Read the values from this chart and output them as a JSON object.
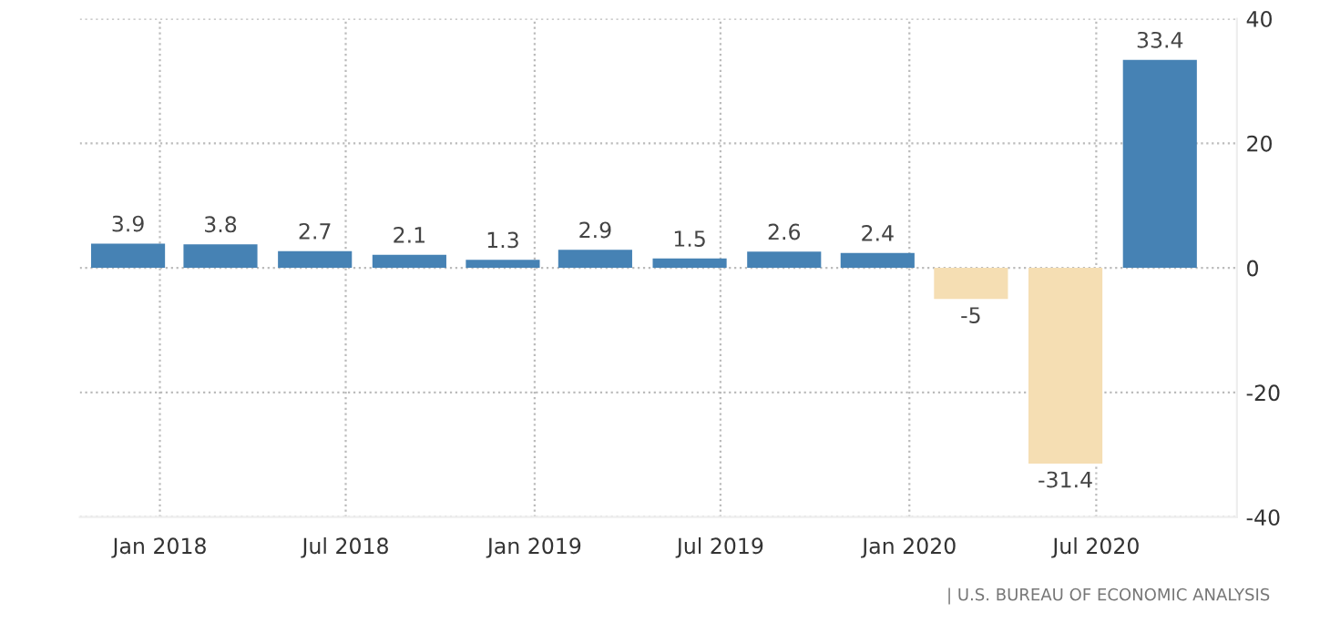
{
  "chart_data": {
    "type": "bar",
    "x": [
      "2017-12",
      "2018-03",
      "2018-06",
      "2018-09",
      "2018-12",
      "2019-03",
      "2019-06",
      "2019-09",
      "2019-12",
      "2020-03",
      "2020-06",
      "2020-09"
    ],
    "values": [
      3.9,
      3.8,
      2.7,
      2.1,
      1.3,
      2.9,
      1.5,
      2.6,
      2.4,
      -5,
      -31.4,
      33.4
    ],
    "value_labels": [
      "3.9",
      "3.8",
      "2.7",
      "2.1",
      "1.3",
      "2.9",
      "1.5",
      "2.6",
      "2.4",
      "-5",
      "-31.4",
      "33.4"
    ],
    "colors": [
      "#4682b4",
      "#4682b4",
      "#4682b4",
      "#4682b4",
      "#4682b4",
      "#4682b4",
      "#4682b4",
      "#4682b4",
      "#4682b4",
      "#f5deb3",
      "#f5deb3",
      "#4682b4"
    ],
    "xlim": [
      "2017-10-15",
      "2020-11-15"
    ],
    "xticks": [
      {
        "value": "2018-01",
        "label": "Jan 2018"
      },
      {
        "value": "2018-07",
        "label": "Jul 2018"
      },
      {
        "value": "2019-01",
        "label": "Jan 2019"
      },
      {
        "value": "2019-07",
        "label": "Jul 2019"
      },
      {
        "value": "2020-01",
        "label": "Jan 2020"
      },
      {
        "value": "2020-07",
        "label": "Jul 2020"
      }
    ],
    "ylim": [
      -40,
      40
    ],
    "yticks": [
      -40,
      -20,
      0,
      20,
      40
    ],
    "grid": true,
    "annotations": [
      "| U.S. BUREAU OF ECONOMIC ANALYSIS"
    ]
  }
}
